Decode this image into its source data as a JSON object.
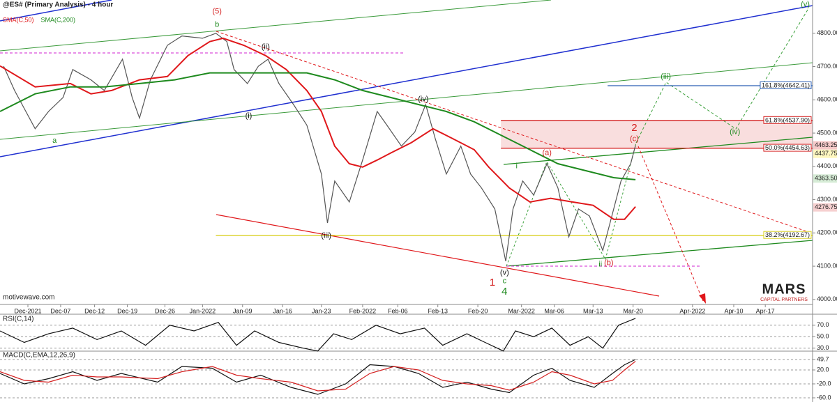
{
  "chart_data": [
    {
      "type": "line",
      "title": "@ES# (Primary Analysis) - 4 hour",
      "source": "motivewave.com",
      "logo": "MARS",
      "logo_sub": "CAPITAL PARTNERS",
      "xlim": [
        0,
        670
      ],
      "ylim": [
        3985,
        4900
      ],
      "xticks": [
        {
          "value": 23,
          "label": "Dec-2021"
        },
        {
          "value": 50,
          "label": "Dec-07"
        },
        {
          "value": 78,
          "label": "Dec-12"
        },
        {
          "value": 105,
          "label": "Dec-19"
        },
        {
          "value": 136,
          "label": "Dec-26"
        },
        {
          "value": 167,
          "label": "Jan-2022"
        },
        {
          "value": 200,
          "label": "Jan-09"
        },
        {
          "value": 233,
          "label": "Jan-16"
        },
        {
          "value": 265,
          "label": "Jan-23"
        },
        {
          "value": 299,
          "label": "Feb-2022"
        },
        {
          "value": 328,
          "label": "Feb-06"
        },
        {
          "value": 361,
          "label": "Feb-13"
        },
        {
          "value": 394,
          "label": "Feb-20"
        },
        {
          "value": 430,
          "label": "Mar-2022"
        },
        {
          "value": 457,
          "label": "Mar-06"
        },
        {
          "value": 489,
          "label": "Mar-13"
        },
        {
          "value": 522,
          "label": "Mar-20"
        },
        {
          "value": 571,
          "label": "Apr-2022"
        },
        {
          "value": 605,
          "label": "Apr-10"
        },
        {
          "value": 631,
          "label": "Apr-17"
        }
      ],
      "yticks": [
        {
          "value": 4000,
          "label": "4000.00"
        },
        {
          "value": 4100,
          "label": "4100.00"
        },
        {
          "value": 4200,
          "label": "4200.00"
        },
        {
          "value": 4300,
          "label": "4300.00"
        },
        {
          "value": 4400,
          "label": "4400.00"
        },
        {
          "value": 4500,
          "label": "4500.00"
        },
        {
          "value": 4600,
          "label": "4600.00"
        },
        {
          "value": 4700,
          "label": "4700.00"
        },
        {
          "value": 4800,
          "label": "4800.00"
        }
      ],
      "series": [
        {
          "name": "@ES#",
          "color": "#555555",
          "x": [
            3,
            12,
            29,
            40,
            52,
            60,
            75,
            86,
            101,
            109,
            115,
            124,
            138,
            150,
            167,
            178,
            187,
            193,
            204,
            213,
            221,
            230,
            242,
            253,
            265,
            270,
            276,
            288,
            299,
            311,
            319,
            331,
            342,
            351,
            359,
            368,
            380,
            388,
            397,
            408,
            417,
            423,
            431,
            440,
            451,
            460,
            469,
            477,
            486,
            497,
            503,
            512,
            520,
            524
          ],
          "values": [
            4701,
            4628,
            4513,
            4565,
            4607,
            4691,
            4660,
            4628,
            4722,
            4607,
            4545,
            4660,
            4764,
            4792,
            4785,
            4800,
            4775,
            4691,
            4649,
            4701,
            4722,
            4649,
            4586,
            4524,
            4377,
            4230,
            4356,
            4293,
            4419,
            4565,
            4524,
            4461,
            4503,
            4586,
            4482,
            4377,
            4461,
            4377,
            4335,
            4272,
            4115,
            4272,
            4356,
            4314,
            4408,
            4335,
            4188,
            4272,
            4251,
            4147,
            4230,
            4356,
            4408,
            4463
          ]
        },
        {
          "name": "SMA(C,50)",
          "color": "#e0181b",
          "x": [
            0,
            29,
            58,
            75,
            92,
            115,
            138,
            155,
            173,
            184,
            201,
            219,
            236,
            253,
            265,
            276,
            288,
            299,
            311,
            322,
            339,
            357,
            374,
            391,
            403,
            420,
            437,
            454,
            472,
            489,
            506,
            515,
            524
          ],
          "values": [
            4702,
            4639,
            4649,
            4618,
            4628,
            4660,
            4670,
            4733,
            4775,
            4785,
            4764,
            4733,
            4691,
            4628,
            4565,
            4461,
            4408,
            4398,
            4419,
            4440,
            4471,
            4513,
            4482,
            4450,
            4398,
            4335,
            4293,
            4304,
            4293,
            4283,
            4241,
            4241,
            4279
          ]
        },
        {
          "name": "SMA(C,200)",
          "color": "#1e8a1e",
          "x": [
            0,
            29,
            58,
            86,
            115,
            144,
            173,
            201,
            230,
            253,
            276,
            299,
            322,
            345,
            368,
            391,
            414,
            437,
            460,
            483,
            506,
            524
          ],
          "values": [
            4565,
            4618,
            4639,
            4639,
            4649,
            4660,
            4681,
            4681,
            4681,
            4681,
            4660,
            4628,
            4607,
            4586,
            4565,
            4534,
            4492,
            4450,
            4408,
            4387,
            4366,
            4360
          ]
        }
      ],
      "levels": [
        {
          "label": "161.8%(4642.41)",
          "value": 4642.41,
          "from": 501,
          "color": "#2b5fb4"
        },
        {
          "label": "61.8%(4537.90)",
          "value": 4537.9,
          "from": 413,
          "color": "#d42020"
        },
        {
          "label": "50.0%(4454.63)",
          "value": 4454.63,
          "from": 413,
          "color": "#d42020"
        },
        {
          "label": "38.2%(4192.67)",
          "value": 4192.67,
          "from": 178,
          "color": "#d8d020"
        }
      ],
      "price_labels": [
        {
          "value": 4463.25,
          "label": "4463.25",
          "color": "#f6c9c9"
        },
        {
          "value": 4437.75,
          "label": "4437.75",
          "color": "#fff7c0"
        },
        {
          "value": 4363.5,
          "label": "4363.50",
          "color": "#d6ecd6"
        },
        {
          "value": 4276.75,
          "label": "4276.75",
          "color": "#f6d0d0"
        }
      ],
      "annotations": [
        {
          "text": "(5)",
          "x": 179,
          "y": 4865,
          "color": "#d42020"
        },
        {
          "text": "b",
          "x": 179,
          "y": 4825,
          "color": "#1e8a1e"
        },
        {
          "text": "(ii)",
          "x": 219,
          "y": 4758,
          "color": "#111111"
        },
        {
          "text": "(i)",
          "x": 205,
          "y": 4551,
          "color": "#111111"
        },
        {
          "text": "a",
          "x": 45,
          "y": 4477,
          "color": "#1e8a1e"
        },
        {
          "text": "(iii)",
          "x": 269,
          "y": 4191,
          "color": "#111111"
        },
        {
          "text": "(iv)",
          "x": 349,
          "y": 4601,
          "color": "#111111"
        },
        {
          "text": "(v)",
          "x": 416,
          "y": 4080,
          "color": "#111111"
        },
        {
          "text": "c",
          "x": 416,
          "y": 4055,
          "color": "#1e8a1e"
        },
        {
          "text": "4",
          "x": 416,
          "y": 4023,
          "color": "#1e8a1e"
        },
        {
          "text": "1",
          "x": 406,
          "y": 4050,
          "color": "#d42020"
        },
        {
          "text": "(a)",
          "x": 451,
          "y": 4440,
          "color": "#d42020"
        },
        {
          "text": "i",
          "x": 426,
          "y": 4400,
          "color": "#1e8a1e"
        },
        {
          "text": "ii",
          "x": 495,
          "y": 4105,
          "color": "#1e8a1e"
        },
        {
          "text": "(b)",
          "x": 502,
          "y": 4109,
          "color": "#d42020"
        },
        {
          "text": "(c)",
          "x": 523,
          "y": 4482,
          "color": "#d42020"
        },
        {
          "text": "2",
          "x": 523,
          "y": 4515,
          "color": "#d42020"
        },
        {
          "text": "(iii)",
          "x": 549,
          "y": 4670,
          "color": "#1e8a1e"
        },
        {
          "text": "(iv)",
          "x": 606,
          "y": 4503,
          "color": "#1e8a1e"
        },
        {
          "text": "(v)",
          "x": 664,
          "y": 4886,
          "color": "#1e8a1e"
        }
      ]
    },
    {
      "type": "line",
      "title": "RSI(C,14)",
      "xlim": [
        0,
        670
      ],
      "ylim": [
        26,
        88
      ],
      "yticks": [
        {
          "value": 70,
          "label": "70.0"
        },
        {
          "value": 50,
          "label": "50.0"
        },
        {
          "value": 30,
          "label": "30.0"
        }
      ],
      "series": [
        {
          "name": "RSI",
          "color": "#111111",
          "x": [
            0,
            20,
            40,
            60,
            80,
            100,
            120,
            140,
            160,
            180,
            195,
            210,
            230,
            250,
            262,
            275,
            290,
            310,
            330,
            350,
            365,
            385,
            400,
            415,
            425,
            440,
            455,
            470,
            485,
            497,
            510,
            524
          ],
          "values": [
            60,
            40,
            55,
            65,
            45,
            60,
            35,
            70,
            60,
            75,
            35,
            60,
            40,
            30,
            25,
            55,
            45,
            70,
            55,
            65,
            35,
            55,
            40,
            25,
            60,
            50,
            65,
            35,
            50,
            30,
            70,
            82
          ]
        }
      ]
    },
    {
      "type": "line",
      "title": "MACD(C,EMA,12,26,9)",
      "xlim": [
        0,
        670
      ],
      "ylim": [
        -72,
        72
      ],
      "yticks": [
        {
          "value": 49.7,
          "label": "49.7"
        },
        {
          "value": 20,
          "label": "20.0"
        },
        {
          "value": -20,
          "label": "-20.0"
        },
        {
          "value": -60,
          "label": "-60.0"
        }
      ],
      "series": [
        {
          "name": "MACD",
          "color": "#111111",
          "x": [
            0,
            20,
            40,
            60,
            80,
            100,
            130,
            150,
            175,
            195,
            215,
            240,
            262,
            285,
            305,
            325,
            345,
            365,
            385,
            405,
            420,
            440,
            455,
            470,
            490,
            505,
            515,
            524
          ],
          "values": [
            10,
            -20,
            -5,
            15,
            -10,
            10,
            -15,
            30,
            25,
            -15,
            5,
            -30,
            -50,
            -20,
            35,
            30,
            10,
            -30,
            -15,
            -35,
            -45,
            5,
            25,
            -10,
            -30,
            10,
            35,
            50
          ]
        },
        {
          "name": "Signal",
          "color": "#d42020",
          "x": [
            0,
            20,
            40,
            60,
            80,
            100,
            130,
            150,
            175,
            195,
            215,
            240,
            262,
            285,
            305,
            325,
            345,
            365,
            385,
            405,
            420,
            440,
            455,
            470,
            490,
            505,
            515,
            524
          ],
          "values": [
            15,
            -10,
            -15,
            5,
            0,
            0,
            -5,
            15,
            30,
            5,
            -5,
            -15,
            -40,
            -35,
            10,
            30,
            20,
            -10,
            -20,
            -25,
            -38,
            -15,
            15,
            5,
            -20,
            -10,
            20,
            45
          ]
        }
      ]
    }
  ]
}
